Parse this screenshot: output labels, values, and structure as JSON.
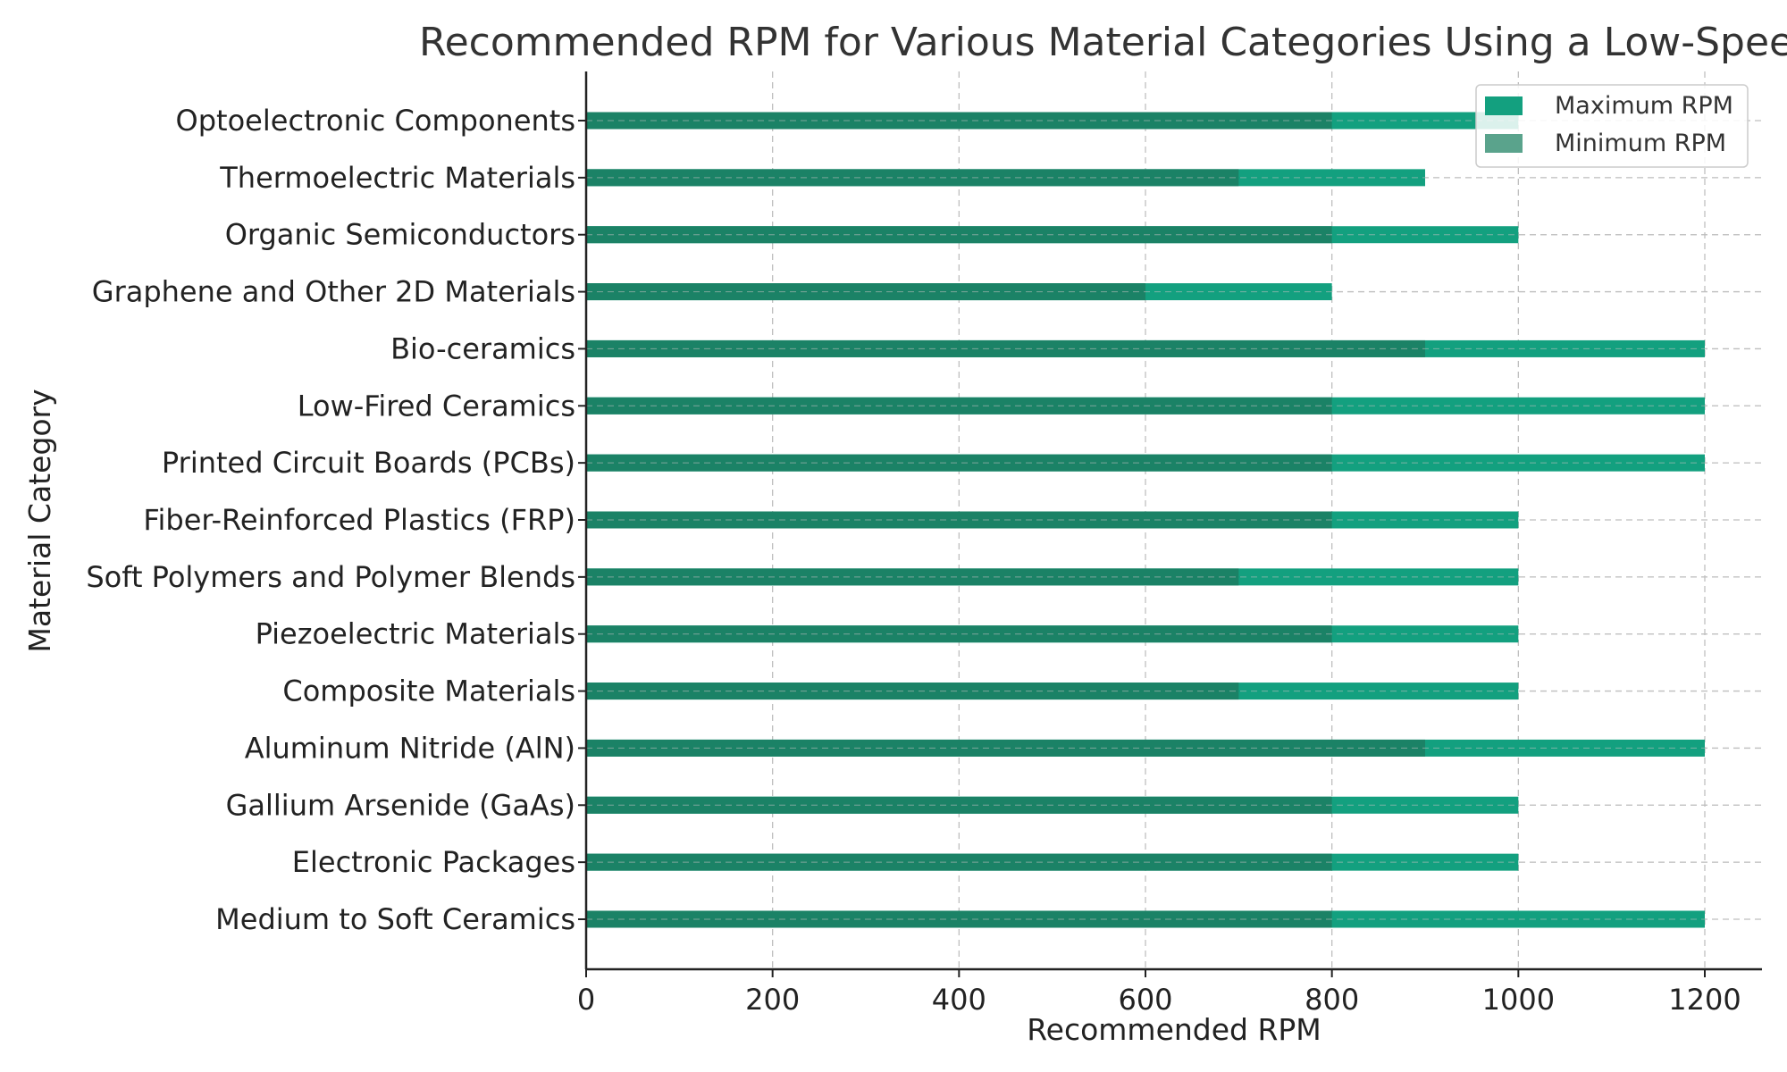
{
  "chart_data": {
    "type": "bar",
    "orientation": "horizontal",
    "title": "Recommended RPM for Various Material Categories Using a Low-Speed Saw",
    "xlabel": "Recommended RPM",
    "ylabel": "Material Category",
    "xlim": [
      0,
      1260
    ],
    "xticks": [
      0,
      200,
      400,
      600,
      800,
      1000,
      1200
    ],
    "grid": true,
    "legend_position": "top-right",
    "categories": [
      "Medium to Soft Ceramics",
      "Electronic Packages",
      "Gallium Arsenide (GaAs)",
      "Aluminum Nitride (AlN)",
      "Composite Materials",
      "Piezoelectric Materials",
      "Soft Polymers and Polymer Blends",
      "Fiber-Reinforced Plastics (FRP)",
      "Printed Circuit Boards (PCBs)",
      "Low-Fired Ceramics",
      "Bio-ceramics",
      "Graphene and Other 2D Materials",
      "Organic Semiconductors",
      "Thermoelectric Materials",
      "Optoelectronic Components"
    ],
    "series": [
      {
        "name": "Maximum RPM",
        "color": "#13a07f",
        "values": [
          1200,
          1000,
          1000,
          1200,
          1000,
          1000,
          1000,
          1000,
          1200,
          1200,
          1200,
          800,
          1000,
          900,
          1000
        ]
      },
      {
        "name": "Minimum RPM",
        "color": "#1b8266",
        "legend_color": "#5aa38c",
        "values": [
          800,
          800,
          800,
          900,
          700,
          800,
          700,
          800,
          800,
          800,
          900,
          600,
          800,
          700,
          800
        ]
      }
    ]
  }
}
